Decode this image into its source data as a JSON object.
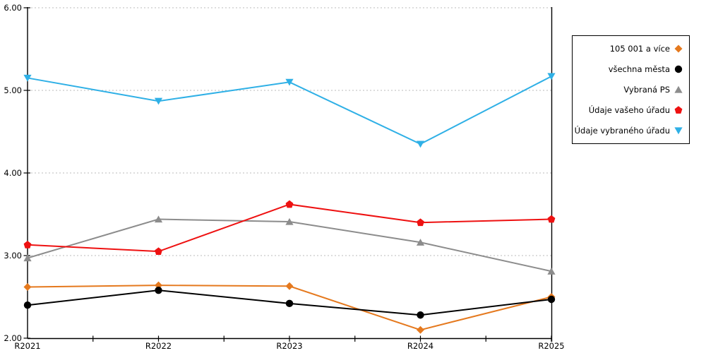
{
  "chart_data": {
    "type": "line",
    "categories": [
      "R2021",
      "R2022",
      "R2023",
      "R2024",
      "R2025"
    ],
    "series": [
      {
        "name": "105 001 a více",
        "color": "#E5791E",
        "marker": "diamond",
        "values": [
          2.62,
          2.64,
          2.63,
          2.1,
          2.5
        ]
      },
      {
        "name": "všechna města",
        "color": "#000000",
        "marker": "circle",
        "values": [
          2.4,
          2.58,
          2.42,
          2.28,
          2.47
        ]
      },
      {
        "name": "Vybraná PS",
        "color": "#8C8C8C",
        "marker": "triangle-up",
        "values": [
          2.97,
          3.44,
          3.41,
          3.16,
          2.81
        ]
      },
      {
        "name": "Údaje vašeho úřadu",
        "color": "#EE1111",
        "marker": "pentagon",
        "values": [
          3.13,
          3.05,
          3.62,
          3.4,
          3.44
        ]
      },
      {
        "name": "Údaje vybraného úřadu",
        "color": "#2FB0E6",
        "marker": "triangle-down",
        "values": [
          5.15,
          4.87,
          5.1,
          4.35,
          5.17
        ]
      }
    ],
    "ylim": [
      2,
      6
    ],
    "ytick_values": [
      2,
      3,
      4,
      5,
      6
    ],
    "ytick_labels": [
      "2.00",
      "3.00",
      "4.00",
      "5.00",
      "6.00"
    ],
    "grid": "horizontal dotted, no gridline at 2.00",
    "gridline_color": "#BBBBBB",
    "axis_color": "#000000",
    "legend_position": "right",
    "title": "",
    "xlabel": "",
    "ylabel": ""
  }
}
